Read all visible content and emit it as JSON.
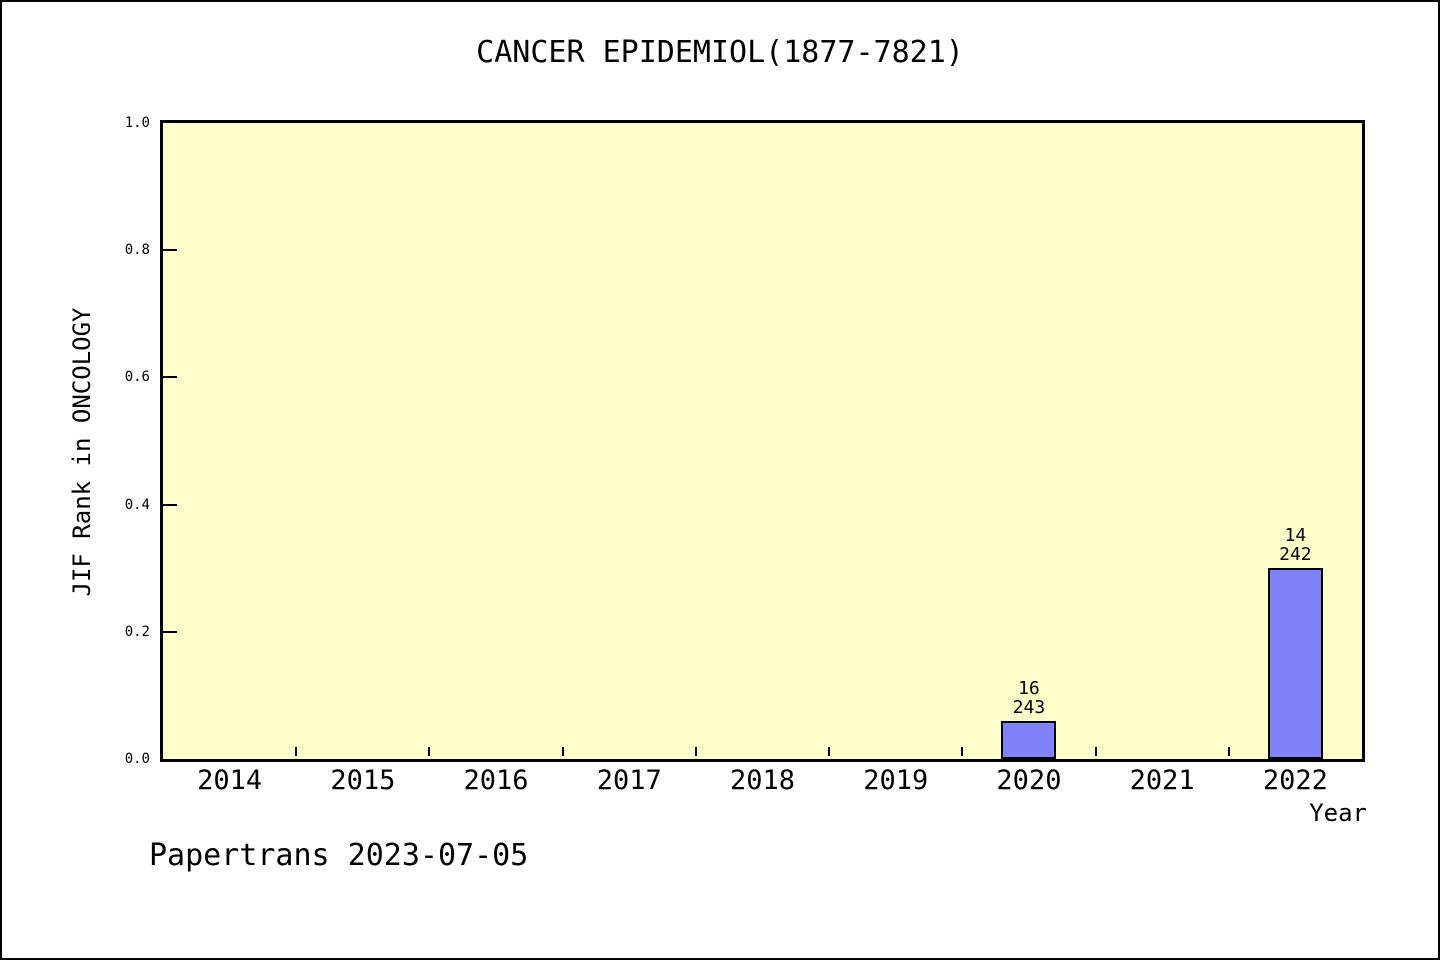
{
  "chart_data": {
    "type": "bar",
    "title": "CANCER EPIDEMIOL(1877-7821)",
    "xlabel": "Year",
    "ylabel": "JIF Rank in ONCOLOGY",
    "categories": [
      "2014",
      "2015",
      "2016",
      "2017",
      "2018",
      "2019",
      "2020",
      "2021",
      "2022"
    ],
    "values": [
      null,
      null,
      null,
      null,
      null,
      null,
      0.06,
      null,
      0.3
    ],
    "bars": [
      {
        "category": "2020",
        "value": 0.06,
        "label_top": "16",
        "label_bottom": "243"
      },
      {
        "category": "2022",
        "value": 0.3,
        "label_top": "14",
        "label_bottom": "242"
      }
    ],
    "ylim": [
      0.0,
      1.0
    ],
    "yticks": [
      0.0,
      0.2,
      0.4,
      0.6,
      0.8,
      1.0
    ],
    "ytick_labels": [
      "0.0",
      "0.2",
      "0.4",
      "0.6",
      "0.8",
      "1.0"
    ],
    "grid": false,
    "annotation": "Papertrans 2023-07-05",
    "colors": {
      "bar_fill": "#8282f8",
      "bar_edge": "#000000",
      "plot_background": "#ffffcc",
      "frame": "#000000",
      "text": "#000000",
      "page_background": "#ffffff"
    }
  }
}
